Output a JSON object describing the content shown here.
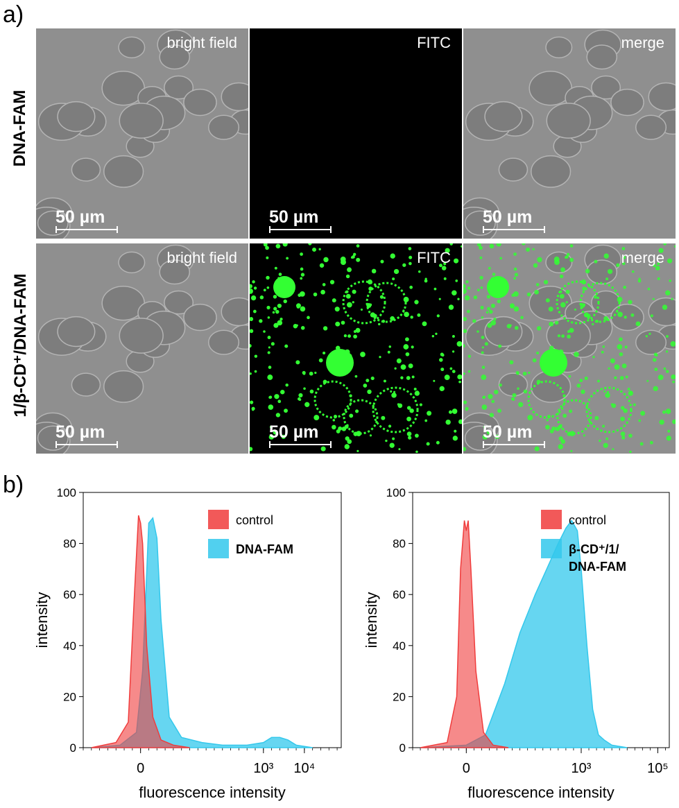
{
  "panel_a_label": "a)",
  "panel_b_label": "b)",
  "row_labels": [
    "DNA-FAM",
    "1/β-CD⁺/DNA-FAM"
  ],
  "channels": [
    "bright field",
    "FITC",
    "merge"
  ],
  "scale_bar": "50 µm",
  "colors": {
    "control": "#f03c3c",
    "sample": "#33c8ec",
    "gfp": "#33ff33",
    "brightfield": "#8f8f8f"
  },
  "chart_data": [
    {
      "type": "area",
      "ylabel": "intensity",
      "xlabel": "fluorescence intensity",
      "ylim": [
        0,
        100
      ],
      "yticks": [
        "0",
        "20",
        "40",
        "60",
        "80",
        "100"
      ],
      "xticks": [
        "0",
        "10³",
        "10⁴"
      ],
      "xscale": "biexponential",
      "legend_position": "top-right",
      "series": [
        {
          "name": "control",
          "x": [
            -1.2,
            -0.6,
            -0.3,
            -0.15,
            -0.05,
            0,
            0.05,
            0.15,
            0.3,
            0.5,
            0.8,
            1.2
          ],
          "y": [
            0,
            2,
            10,
            60,
            91,
            88,
            80,
            40,
            12,
            3,
            1,
            0
          ]
        },
        {
          "name": "DNA-FAM",
          "x": [
            -1.2,
            -0.5,
            -0.1,
            0.05,
            0.2,
            0.3,
            0.4,
            0.5,
            0.7,
            1.0,
            1.5,
            2.0,
            2.6,
            3.0,
            3.2,
            3.4,
            3.6,
            3.8,
            4.2
          ],
          "y": [
            0,
            1,
            6,
            30,
            88,
            90,
            82,
            50,
            12,
            4,
            2,
            1,
            1,
            2,
            4,
            4,
            3,
            1,
            0
          ]
        }
      ]
    },
    {
      "type": "area",
      "ylabel": "intensity",
      "xlabel": "fluorescence intensity",
      "ylim": [
        0,
        100
      ],
      "yticks": [
        "0",
        "20",
        "40",
        "60",
        "80",
        "100"
      ],
      "xticks": [
        "0",
        "10³",
        "10⁵"
      ],
      "xscale": "biexponential",
      "legend_position": "top-right",
      "series": [
        {
          "name": "control",
          "x": [
            -1.2,
            -0.5,
            -0.25,
            -0.15,
            -0.05,
            0,
            0.05,
            0.12,
            0.25,
            0.45,
            0.7,
            1.1
          ],
          "y": [
            0,
            2,
            20,
            70,
            89,
            85,
            89,
            70,
            30,
            6,
            1,
            0
          ]
        },
        {
          "name": "β-CD⁺/1/ DNA-FAM",
          "x": [
            -1.2,
            0,
            0.5,
            1.0,
            1.4,
            1.8,
            2.1,
            2.4,
            2.6,
            2.75,
            2.9,
            3.0,
            3.15,
            3.3,
            3.45,
            3.6,
            3.8,
            4.2
          ],
          "y": [
            0,
            1,
            5,
            25,
            45,
            60,
            70,
            80,
            86,
            89,
            85,
            70,
            40,
            15,
            5,
            3,
            1,
            0
          ]
        }
      ]
    }
  ]
}
